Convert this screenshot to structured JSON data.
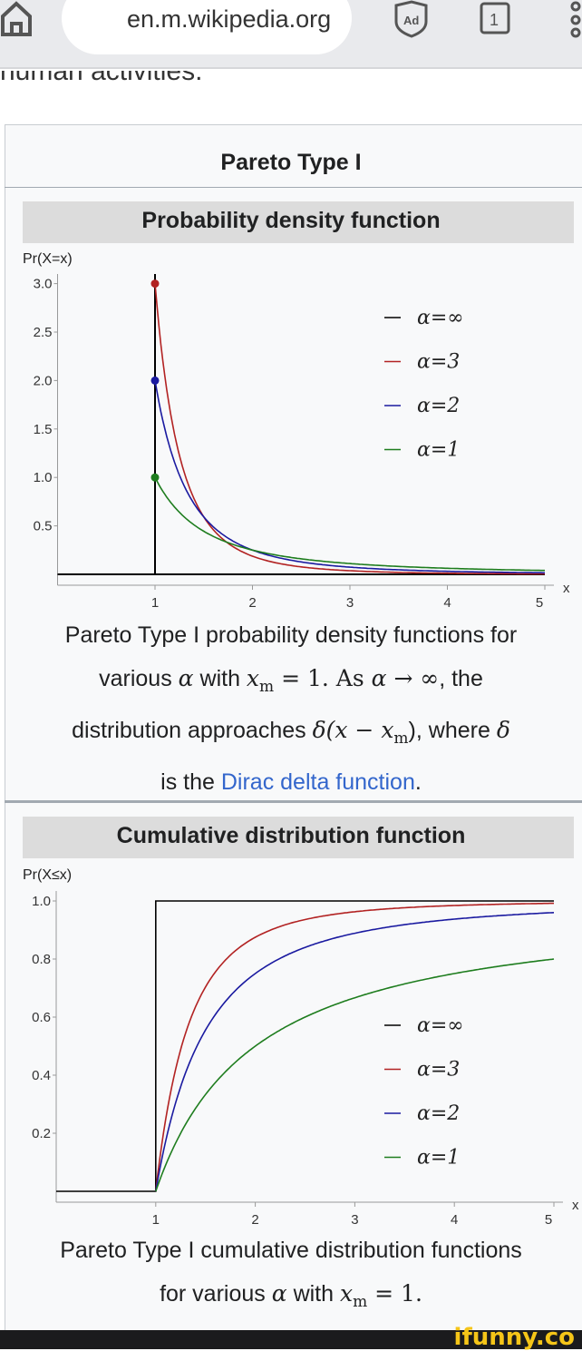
{
  "browser": {
    "url": "en.m.wikipedia.org",
    "tab_count": "1",
    "ad_label": "Ad"
  },
  "page": {
    "previous_text": "human activities.",
    "infobox_title": "Pareto Type I"
  },
  "pdf": {
    "header": "Probability density function",
    "caption_parts": [
      "Pareto Type I probability density functions for",
      "various ",
      "α",
      " with ",
      "x",
      "m",
      " = 1. As ",
      "α → ∞",
      ", the",
      "distribution approaches ",
      "δ(x − x",
      "m",
      "), where ",
      "δ",
      "is the ",
      "Dirac delta function",
      "."
    ]
  },
  "cdf": {
    "header": "Cumulative distribution function",
    "caption_parts": [
      "Pareto Type I cumulative distribution functions",
      "for various ",
      "α",
      " with ",
      "x",
      "m",
      " = 1."
    ]
  },
  "footer": {
    "watermark": "ifunny.co"
  },
  "chart_data": [
    {
      "type": "line",
      "title": "Probability density function",
      "ylabel": "Pr(X=x)",
      "xlabel": "x",
      "xlim": [
        0,
        5
      ],
      "ylim": [
        0,
        3.2
      ],
      "xticks": [
        1,
        2,
        3,
        4,
        5
      ],
      "yticks": [
        0.5,
        1.0,
        1.5,
        2.0,
        2.5,
        3.0
      ],
      "ytick_labels": [
        "0.5",
        "1.0",
        "1.5",
        "2.0",
        "2.5",
        "3.0"
      ],
      "legend": "top-right",
      "series": [
        {
          "name": "α=∞",
          "alpha": null,
          "color": "#000000"
        },
        {
          "name": "α=3",
          "alpha": 3,
          "color": "#b22222"
        },
        {
          "name": "α=2",
          "alpha": 2,
          "color": "#1a1aa0"
        },
        {
          "name": "α=1",
          "alpha": 1,
          "color": "#1e7d1e"
        }
      ],
      "function": "α/x^(α+1) for x≥1, xm=1"
    },
    {
      "type": "line",
      "title": "Cumulative distribution function",
      "ylabel": "Pr(X≤x)",
      "xlabel": "x",
      "xlim": [
        0,
        5
      ],
      "ylim": [
        0,
        1.05
      ],
      "xticks": [
        1,
        2,
        3,
        4,
        5
      ],
      "yticks": [
        0.2,
        0.4,
        0.6,
        0.8,
        1.0
      ],
      "ytick_labels": [
        "0.2",
        "0.4",
        "0.6",
        "0.8",
        "1.0"
      ],
      "legend": "right",
      "series": [
        {
          "name": "α=∞",
          "alpha": null,
          "color": "#000000"
        },
        {
          "name": "α=3",
          "alpha": 3,
          "color": "#b22222"
        },
        {
          "name": "α=2",
          "alpha": 2,
          "color": "#1a1aa0"
        },
        {
          "name": "α=1",
          "alpha": 1,
          "color": "#1e7d1e"
        }
      ],
      "function": "1 − x^(−α) for x≥1, xm=1"
    }
  ]
}
